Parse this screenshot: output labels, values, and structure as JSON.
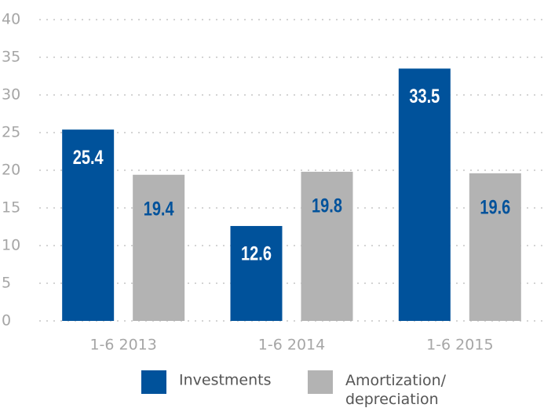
{
  "chart_data": {
    "type": "bar",
    "categories": [
      "1-6 2013",
      "1-6 2014",
      "1-6 2015"
    ],
    "series": [
      {
        "name": "Investments",
        "color": "#00529b",
        "values": [
          25.4,
          12.6,
          33.5
        ]
      },
      {
        "name": "Amortization/ depreciation",
        "color": "#b3b3b3",
        "values": [
          19.4,
          19.8,
          19.6
        ]
      }
    ],
    "ylim": [
      0,
      40
    ],
    "yticks": [
      0,
      5,
      10,
      15,
      20,
      25,
      30,
      35,
      40
    ],
    "grid": true
  }
}
